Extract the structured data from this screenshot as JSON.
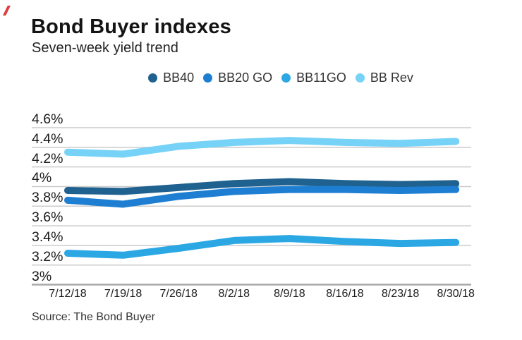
{
  "decoration": {
    "red_mark_color": "#e0393e"
  },
  "chart_data": {
    "type": "line",
    "title": "Bond Buyer indexes",
    "subtitle": "Seven-week yield trend",
    "source": "Source: The Bond Buyer",
    "x_labels": [
      "7/12/18",
      "7/19/18",
      "7/26/18",
      "8/2/18",
      "8/9/18",
      "8/16/18",
      "8/23/18",
      "8/30/18"
    ],
    "series": [
      {
        "name": "BB40",
        "color": "#1f618f",
        "values": [
          3.96,
          3.95,
          3.99,
          4.03,
          4.05,
          4.03,
          4.02,
          4.03
        ]
      },
      {
        "name": "BB20 GO",
        "color": "#1e7fd2",
        "values": [
          3.86,
          3.82,
          3.9,
          3.95,
          3.97,
          3.97,
          3.96,
          3.97
        ]
      },
      {
        "name": "BB11GO",
        "color": "#2ba7e4",
        "values": [
          3.32,
          3.3,
          3.37,
          3.45,
          3.47,
          3.44,
          3.42,
          3.43
        ]
      },
      {
        "name": "BB Rev",
        "color": "#76d2f7",
        "values": [
          4.35,
          4.33,
          4.41,
          4.45,
          4.47,
          4.45,
          4.44,
          4.46
        ]
      }
    ],
    "y_ticks": [
      {
        "label": "4.6%",
        "value": 4.6
      },
      {
        "label": "4.4%",
        "value": 4.4
      },
      {
        "label": "4.2%",
        "value": 4.2
      },
      {
        "label": "4%",
        "value": 4.0
      },
      {
        "label": "3.8%",
        "value": 3.8
      },
      {
        "label": "3.6%",
        "value": 3.6
      },
      {
        "label": "3.4%",
        "value": 3.4
      },
      {
        "label": "3.2%",
        "value": 3.2
      },
      {
        "label": "3%",
        "value": 3.0
      }
    ],
    "ylim": [
      3.0,
      4.6
    ],
    "tick_step": 0.2,
    "grid": true,
    "legend_position": "top-center",
    "gridline_color": "#cbcbcb",
    "axisline_color": "#a9a9a9"
  }
}
